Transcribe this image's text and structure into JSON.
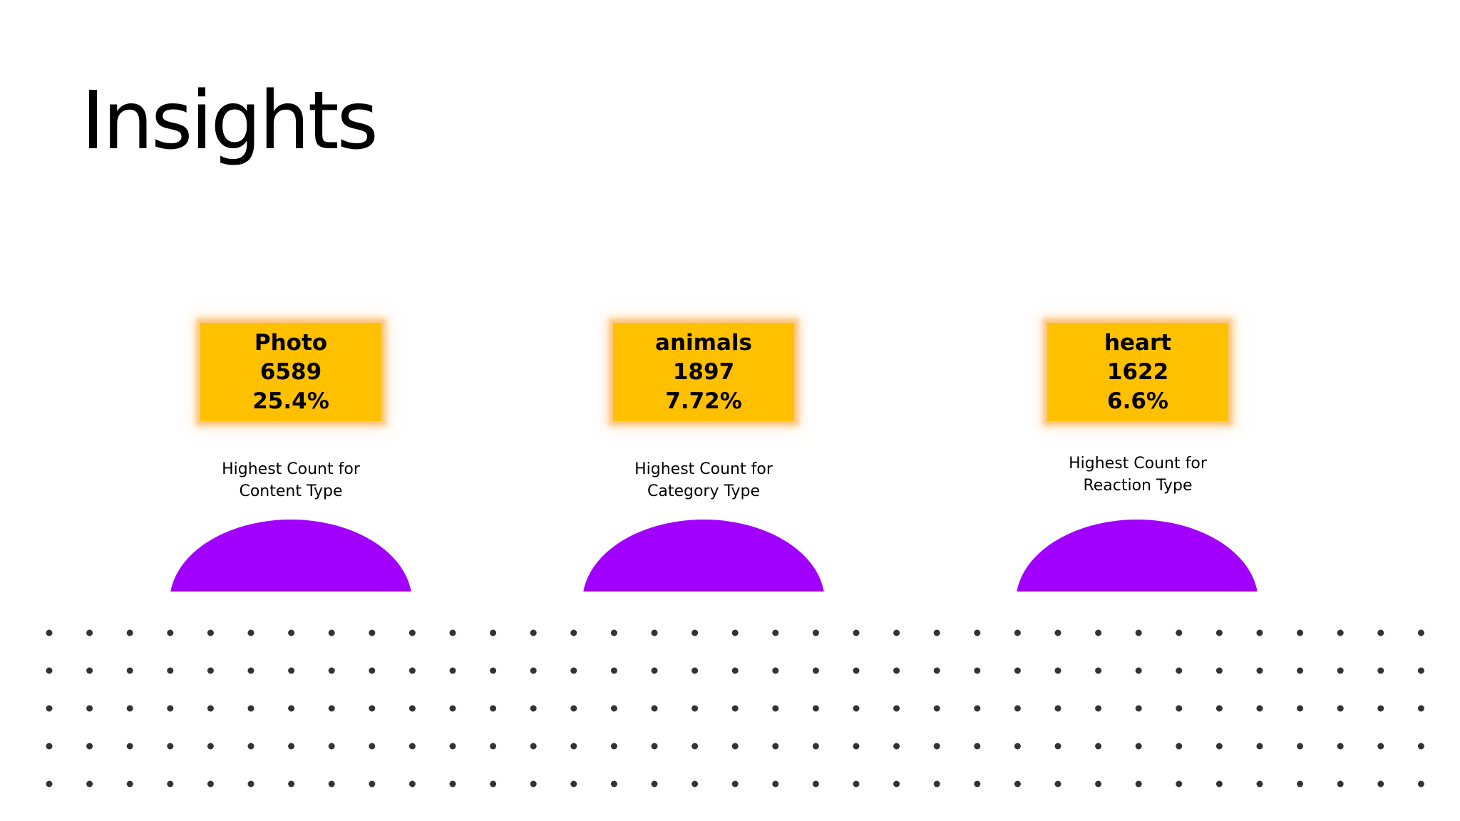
{
  "slide": {
    "title": "Insights"
  },
  "colors": {
    "card_fill": "#ffc000",
    "card_glow": "#ffbe6e",
    "dome": "#a100ff",
    "dots": "#333333"
  },
  "insights": [
    {
      "name": "Photo",
      "count": "6589",
      "percent": "25.4%",
      "caption_line1": "Highest Count for",
      "caption_line2": "Content Type"
    },
    {
      "name": "animals",
      "count": "1897",
      "percent": "7.72%",
      "caption_line1": "Highest Count for",
      "caption_line2": "Category Type"
    },
    {
      "name": "heart",
      "count": "1622",
      "percent": "6.6%",
      "caption_line1": "Highest Count for",
      "caption_line2": "Reaction Type"
    }
  ]
}
